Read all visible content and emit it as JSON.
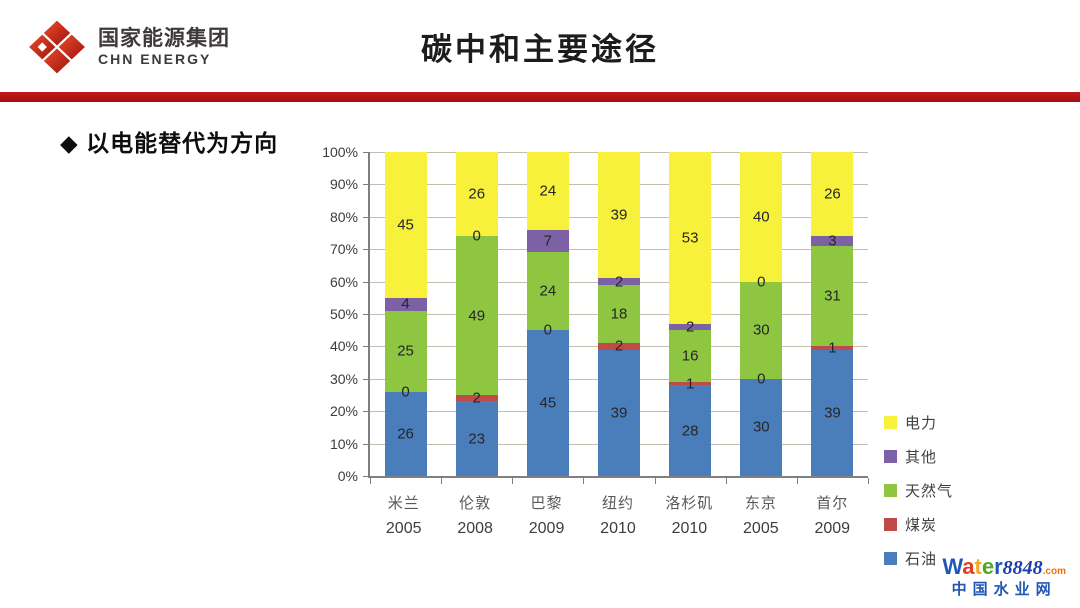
{
  "header": {
    "logo": {
      "cn": "国家能源集团",
      "en": "CHN ENERGY"
    },
    "title": "碳中和主要途径"
  },
  "slide": {
    "bullet": "◆ 以电能替代为方向"
  },
  "chart_data": {
    "type": "bar",
    "variant": "stacked-100-percent",
    "title": "",
    "categories": [
      "米兰 2005",
      "伦敦 2008",
      "巴黎 2009",
      "纽约 2010",
      "洛杉矶 2010",
      "东京 2005",
      "首尔 2009"
    ],
    "cities": [
      "米兰",
      "伦敦",
      "巴黎",
      "纽约",
      "洛杉矶",
      "东京",
      "首尔"
    ],
    "years": [
      "2005",
      "2008",
      "2009",
      "2010",
      "2010",
      "2005",
      "2009"
    ],
    "series": [
      {
        "name": "石油",
        "color": "#4A7EBB",
        "values": [
          26,
          23,
          45,
          39,
          28,
          30,
          39
        ]
      },
      {
        "name": "煤炭",
        "color": "#BE4B48",
        "values": [
          0,
          2,
          0,
          2,
          1,
          0,
          1
        ]
      },
      {
        "name": "天然气",
        "color": "#8EC641",
        "values": [
          25,
          49,
          24,
          18,
          16,
          30,
          31
        ]
      },
      {
        "name": "其他",
        "color": "#7C61A5",
        "values": [
          4,
          0,
          7,
          2,
          2,
          0,
          3
        ]
      },
      {
        "name": "电力",
        "color": "#F7F13B",
        "values": [
          45,
          26,
          24,
          39,
          53,
          40,
          26
        ]
      }
    ],
    "legend": [
      "电力",
      "其他",
      "天然气",
      "煤炭",
      "石油"
    ],
    "legend_position": "right",
    "xlabel": "",
    "ylabel": "",
    "ylim": [
      0,
      100
    ],
    "ytick_step": 10,
    "ytick_suffix": "%",
    "grid": true,
    "bar_labels": true
  },
  "watermark": {
    "brand": [
      {
        "ch": "W",
        "color": "#1F57B5"
      },
      {
        "ch": "a",
        "color": "#E23E1E"
      },
      {
        "ch": "t",
        "color": "#F5A81C"
      },
      {
        "ch": "e",
        "color": "#56A528"
      },
      {
        "ch": "r",
        "color": "#1F57B5"
      }
    ],
    "number": "8848",
    "tld": ".com",
    "site_name": "中国水业网"
  },
  "colors": {
    "divider_red": "#B01318",
    "logo_red": "#C8281C"
  }
}
